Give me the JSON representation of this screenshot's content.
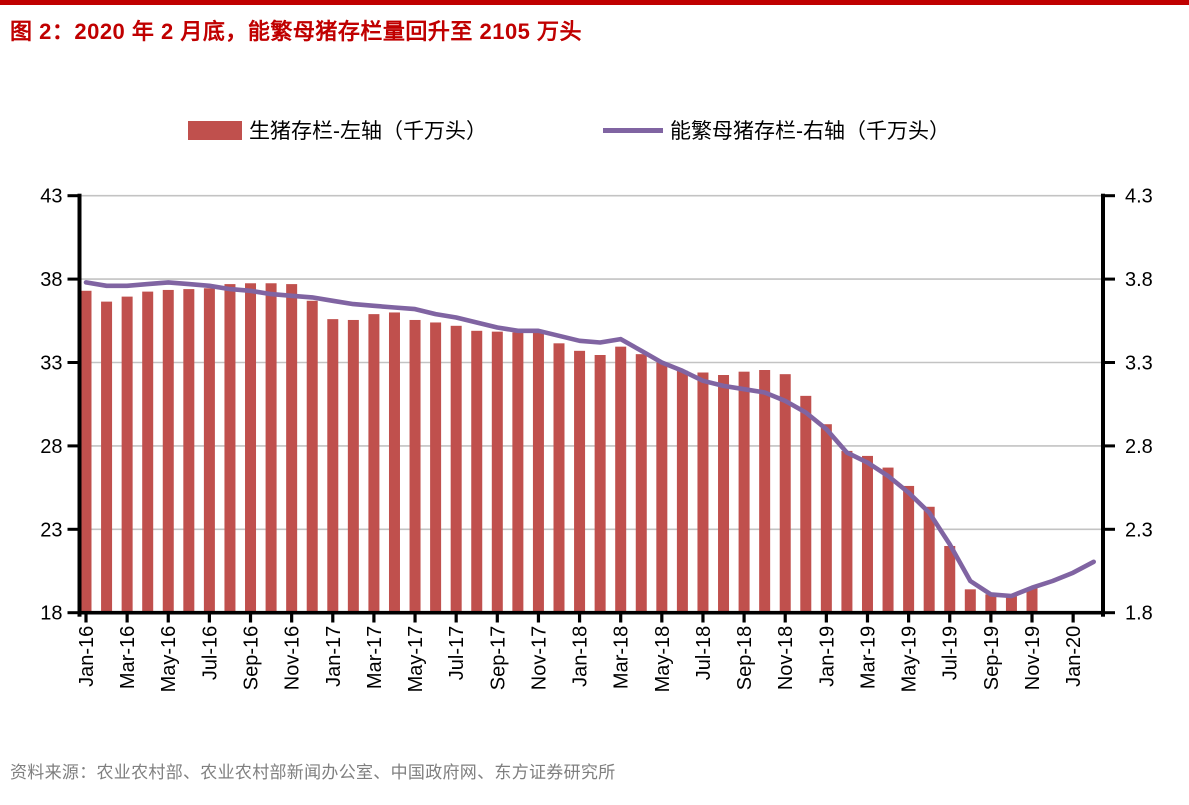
{
  "page": {
    "title": "图 2：2020 年 2 月底，能繁母猪存栏量回升至 2105 万头",
    "source": "资料来源：农业农村部、农业农村部新闻办公室、中国政府网、东方证券研究所"
  },
  "colors": {
    "accent_red": "#c00000",
    "bar": "#c0504d",
    "line": "#8064a2",
    "grid": "#c3c3c3",
    "axis": "#000000",
    "source_text": "#7f7f7f"
  },
  "legend": {
    "bar_label": "生猪存栏-左轴（千万头）",
    "line_label": "能繁母猪存栏-右轴（千万头）"
  },
  "chart_data": {
    "type": "bar",
    "subtype": "bar+line combo, dual axis",
    "title": "图 2：2020 年 2 月底，能繁母猪存栏量回升至 2105 万头",
    "categories": [
      "Jan-16",
      "Feb-16",
      "Mar-16",
      "Apr-16",
      "May-16",
      "Jun-16",
      "Jul-16",
      "Aug-16",
      "Sep-16",
      "Oct-16",
      "Nov-16",
      "Dec-16",
      "Jan-17",
      "Feb-17",
      "Mar-17",
      "Apr-17",
      "May-17",
      "Jun-17",
      "Jul-17",
      "Aug-17",
      "Sep-17",
      "Oct-17",
      "Nov-17",
      "Dec-17",
      "Jan-18",
      "Feb-18",
      "Mar-18",
      "Apr-18",
      "May-18",
      "Jun-18",
      "Jul-18",
      "Aug-18",
      "Sep-18",
      "Oct-18",
      "Nov-18",
      "Dec-18",
      "Jan-19",
      "Feb-19",
      "Mar-19",
      "Apr-19",
      "May-19",
      "Jun-19",
      "Jul-19",
      "Aug-19",
      "Sep-19",
      "Oct-19",
      "Nov-19",
      "Dec-19",
      "Jan-20",
      "Feb-20"
    ],
    "x_tick_labels": [
      "Jan-16",
      "Mar-16",
      "May-16",
      "Jul-16",
      "Sep-16",
      "Nov-16",
      "Jan-17",
      "Mar-17",
      "May-17",
      "Jul-17",
      "Sep-17",
      "Nov-17",
      "Jan-18",
      "Mar-18",
      "May-18",
      "Jul-18",
      "Sep-18",
      "Nov-18",
      "Jan-19",
      "Mar-19",
      "May-19",
      "Jul-19",
      "Sep-19",
      "Nov-19",
      "Jan-20"
    ],
    "series": [
      {
        "name": "生猪存栏-左轴（千万头）",
        "type": "bar",
        "axis": "left",
        "color": "#c0504d",
        "values": [
          37.3,
          36.65,
          36.95,
          37.25,
          37.35,
          37.4,
          37.45,
          37.7,
          37.75,
          37.75,
          37.7,
          36.7,
          35.6,
          35.55,
          35.9,
          36.0,
          35.55,
          35.4,
          35.2,
          34.9,
          34.85,
          34.8,
          34.9,
          34.15,
          33.7,
          33.45,
          33.95,
          33.5,
          33.0,
          32.5,
          32.4,
          32.25,
          32.45,
          32.55,
          32.3,
          31.0,
          29.3,
          27.7,
          27.4,
          26.7,
          25.6,
          24.35,
          22.0,
          19.4,
          19.1,
          19.0,
          19.5,
          null,
          null,
          null
        ]
      },
      {
        "name": "能繁母猪存栏-右轴（千万头）",
        "type": "line",
        "axis": "right",
        "color": "#8064a2",
        "values": [
          3.78,
          3.76,
          3.76,
          3.77,
          3.78,
          3.77,
          3.76,
          3.74,
          3.73,
          3.71,
          3.7,
          3.69,
          3.67,
          3.65,
          3.64,
          3.63,
          3.62,
          3.59,
          3.57,
          3.54,
          3.51,
          3.49,
          3.49,
          3.46,
          3.43,
          3.42,
          3.44,
          3.37,
          3.3,
          3.25,
          3.19,
          3.16,
          3.14,
          3.12,
          3.07,
          3.0,
          2.9,
          2.76,
          2.7,
          2.62,
          2.52,
          2.4,
          2.21,
          1.99,
          1.91,
          1.9,
          1.95,
          1.99,
          2.04,
          2.105
        ]
      }
    ],
    "left_axis": {
      "min": 18,
      "max": 43,
      "ticks": [
        43,
        38,
        33,
        28,
        23,
        18
      ]
    },
    "right_axis": {
      "min": 1.8,
      "max": 4.3,
      "ticks": [
        4.3,
        3.8,
        3.3,
        2.8,
        2.3,
        1.8
      ]
    },
    "grid": "horizontal gridlines at left-axis ticks 23-43",
    "legend_position": "top-center",
    "annotation": "生猪存栏 bars end at Nov-19; 能繁母猪存栏 line continues to Feb-20 at 2.105 (2105万头)"
  }
}
